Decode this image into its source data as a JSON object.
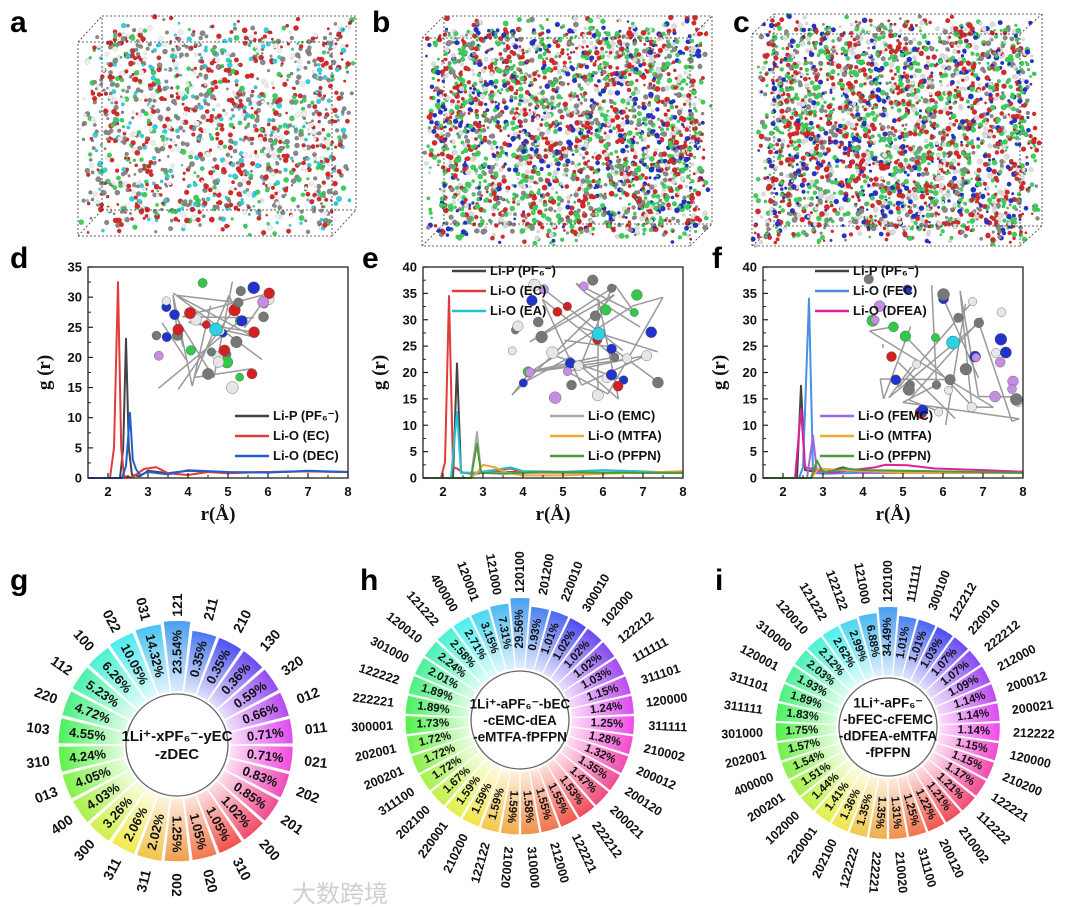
{
  "panel_letters": {
    "a": "a",
    "b": "b",
    "c": "c",
    "d": "d",
    "e": "e",
    "f": "f",
    "g": "g",
    "h": "h",
    "i": "i"
  },
  "watermark": "大数跨境",
  "chart_data": [
    {
      "id": "d",
      "type": "line",
      "xlabel": "r(Å)",
      "ylabel": "g (r)",
      "xlim": [
        1.5,
        8
      ],
      "ylim": [
        0,
        35
      ],
      "xticks": [
        2,
        3,
        4,
        5,
        6,
        7,
        8
      ],
      "yticks": [
        0,
        5,
        10,
        15,
        20,
        25,
        30,
        35
      ],
      "series": [
        {
          "name": "Li-P (PF₆⁻)",
          "color": "#444444",
          "points": [
            [
              1.5,
              0
            ],
            [
              2.3,
              0
            ],
            [
              2.38,
              5
            ],
            [
              2.45,
              23.1
            ],
            [
              2.52,
              5
            ],
            [
              2.6,
              0.5
            ],
            [
              2.8,
              0.3
            ],
            [
              3,
              1.2
            ],
            [
              3.5,
              0.8
            ],
            [
              4,
              1.2
            ],
            [
              5,
              0.9
            ],
            [
              6,
              1
            ],
            [
              7,
              1.1
            ],
            [
              8,
              1
            ]
          ]
        },
        {
          "name": "Li-O (EC)",
          "color": "#e23b3b",
          "points": [
            [
              1.5,
              0
            ],
            [
              2.05,
              0
            ],
            [
              2.15,
              5
            ],
            [
              2.25,
              32.5
            ],
            [
              2.33,
              5
            ],
            [
              2.4,
              0.3
            ],
            [
              2.6,
              0.1
            ],
            [
              2.9,
              1.5
            ],
            [
              3.2,
              1.8
            ],
            [
              3.5,
              0.8
            ],
            [
              4,
              0.5
            ],
            [
              4.5,
              1
            ],
            [
              5,
              0.8
            ],
            [
              6,
              1
            ],
            [
              7,
              1.1
            ],
            [
              8,
              1
            ]
          ]
        },
        {
          "name": "Li-O (DEC)",
          "color": "#1f5fd0",
          "points": [
            [
              1.5,
              0
            ],
            [
              2.35,
              0
            ],
            [
              2.45,
              2
            ],
            [
              2.55,
              10.8
            ],
            [
              2.62,
              3
            ],
            [
              2.7,
              1.5
            ],
            [
              2.8,
              0.5
            ],
            [
              3,
              1
            ],
            [
              3.5,
              0.6
            ],
            [
              4,
              1.3
            ],
            [
              5,
              1
            ],
            [
              6,
              0.9
            ],
            [
              7,
              1.2
            ],
            [
              8,
              1
            ]
          ]
        }
      ]
    },
    {
      "id": "e",
      "type": "line",
      "xlabel": "r(Å)",
      "ylabel": "g (r)",
      "xlim": [
        1.5,
        8
      ],
      "ylim": [
        0,
        40
      ],
      "xticks": [
        2,
        3,
        4,
        5,
        6,
        7,
        8
      ],
      "yticks": [
        0,
        5,
        10,
        15,
        20,
        25,
        30,
        35,
        40
      ],
      "series": [
        {
          "name": "Li-P (PF₆⁻)",
          "color": "#444444",
          "points": [
            [
              1.5,
              0
            ],
            [
              2.25,
              0
            ],
            [
              2.35,
              21.7
            ],
            [
              2.45,
              1
            ],
            [
              2.8,
              0.8
            ],
            [
              3,
              1
            ],
            [
              4,
              1.2
            ],
            [
              5,
              1
            ],
            [
              8,
              1
            ]
          ]
        },
        {
          "name": "Li-O (EC)",
          "color": "#e23b3b",
          "points": [
            [
              1.5,
              0
            ],
            [
              1.95,
              0
            ],
            [
              2.05,
              3
            ],
            [
              2.15,
              34.5
            ],
            [
              2.25,
              2
            ],
            [
              2.35,
              1.8
            ],
            [
              2.5,
              1
            ],
            [
              3,
              1
            ],
            [
              3.7,
              1.8
            ],
            [
              4,
              1
            ],
            [
              5,
              1
            ],
            [
              8,
              1
            ]
          ]
        },
        {
          "name": "Li-O (EA)",
          "color": "#22c4d0",
          "points": [
            [
              1.5,
              0
            ],
            [
              2.2,
              0
            ],
            [
              2.35,
              12.5
            ],
            [
              2.45,
              1
            ],
            [
              2.8,
              1
            ],
            [
              3.7,
              2
            ],
            [
              4,
              1.3
            ],
            [
              5,
              1.2
            ],
            [
              6,
              1.5
            ],
            [
              8,
              1
            ]
          ]
        },
        {
          "name": "Li-O (EMC)",
          "color": "#aaaaaa",
          "points": [
            [
              1.5,
              0
            ],
            [
              2.7,
              0
            ],
            [
              2.85,
              8.7
            ],
            [
              2.95,
              1
            ],
            [
              3.5,
              1
            ],
            [
              5,
              1
            ],
            [
              8,
              1
            ]
          ]
        },
        {
          "name": "Li-O (MTFA)",
          "color": "#f0a830",
          "points": [
            [
              1.5,
              0
            ],
            [
              2.7,
              0
            ],
            [
              2.85,
              1
            ],
            [
              3,
              2.5
            ],
            [
              3.3,
              2
            ],
            [
              3.6,
              1
            ],
            [
              4,
              0.5
            ],
            [
              5,
              0.5
            ],
            [
              6,
              0.8
            ],
            [
              7,
              1
            ],
            [
              8,
              1.3
            ]
          ]
        },
        {
          "name": "Li-O (PFPN)",
          "color": "#4a9a3a",
          "points": [
            [
              1.5,
              0
            ],
            [
              2.7,
              0
            ],
            [
              2.85,
              6.5
            ],
            [
              2.95,
              1
            ],
            [
              3.5,
              0.8
            ],
            [
              4.5,
              1.2
            ],
            [
              6,
              1
            ],
            [
              8,
              1
            ]
          ]
        }
      ]
    },
    {
      "id": "f",
      "type": "line",
      "xlabel": "r(Å)",
      "ylabel": "g (r)",
      "xlim": [
        1.5,
        8
      ],
      "ylim": [
        0,
        40
      ],
      "xticks": [
        2,
        3,
        4,
        5,
        6,
        7,
        8
      ],
      "yticks": [
        0,
        5,
        10,
        15,
        20,
        25,
        30,
        35,
        40
      ],
      "series": [
        {
          "name": "Li-P (PF₆⁻)",
          "color": "#444444",
          "points": [
            [
              1.5,
              0
            ],
            [
              2.35,
              0
            ],
            [
              2.45,
              17.5
            ],
            [
              2.55,
              1.5
            ],
            [
              3,
              1
            ],
            [
              3.5,
              2
            ],
            [
              4,
              1
            ],
            [
              8,
              1
            ]
          ]
        },
        {
          "name": "Li-O (FEC)",
          "color": "#4a90e2",
          "points": [
            [
              1.5,
              0
            ],
            [
              2.4,
              0
            ],
            [
              2.5,
              2
            ],
            [
              2.65,
              34
            ],
            [
              2.75,
              1
            ],
            [
              3,
              0.8
            ],
            [
              4,
              1
            ],
            [
              8,
              1
            ]
          ]
        },
        {
          "name": "Li-O (DFEA)",
          "color": "#e0209a",
          "points": [
            [
              1.5,
              0
            ],
            [
              2.3,
              0
            ],
            [
              2.45,
              13
            ],
            [
              2.55,
              2
            ],
            [
              2.9,
              1.5
            ],
            [
              3.2,
              1
            ],
            [
              4.3,
              2
            ],
            [
              4.55,
              2.5
            ],
            [
              5.1,
              2.4
            ],
            [
              5.8,
              1.8
            ],
            [
              7,
              1.5
            ],
            [
              8,
              1.2
            ]
          ]
        },
        {
          "name": "Li-O (FEMC)",
          "color": "#9a6ae0",
          "points": [
            [
              1.5,
              0
            ],
            [
              2.6,
              0
            ],
            [
              2.75,
              8
            ],
            [
              2.85,
              1
            ],
            [
              3.5,
              1.5
            ],
            [
              4,
              1
            ],
            [
              8,
              1
            ]
          ]
        },
        {
          "name": "Li-O (MTFA)",
          "color": "#f0a830",
          "points": [
            [
              1.5,
              0
            ],
            [
              2.7,
              0
            ],
            [
              2.9,
              1.8
            ],
            [
              3.5,
              1.5
            ],
            [
              5,
              1
            ],
            [
              8,
              1
            ]
          ]
        },
        {
          "name": "Li-O (PFPN)",
          "color": "#4a9a3a",
          "points": [
            [
              1.5,
              0
            ],
            [
              2.7,
              0
            ],
            [
              2.85,
              3.3
            ],
            [
              3,
              1
            ],
            [
              3.5,
              1.8
            ],
            [
              4,
              1.5
            ],
            [
              8,
              1
            ]
          ]
        }
      ]
    },
    {
      "id": "g",
      "type": "bar",
      "subtype": "radial",
      "center_label": [
        "1Li⁺-xPF₆⁻-yEC",
        "-zDEC"
      ],
      "categories": [
        "121",
        "211",
        "210",
        "130",
        "320",
        "012",
        "011",
        "021",
        "202",
        "201",
        "200",
        "310",
        "020",
        "002",
        "311",
        "311",
        "300",
        "400",
        "013",
        "310",
        "103",
        "220",
        "112",
        "100",
        "022",
        "031"
      ],
      "values": [
        23.54,
        0.35,
        0.35,
        0.36,
        0.59,
        0.66,
        0.71,
        0.71,
        0.83,
        0.85,
        1.02,
        1.05,
        1.05,
        1.25,
        2.02,
        2.06,
        3.26,
        4.03,
        4.05,
        4.24,
        4.55,
        4.72,
        5.23,
        6.26,
        10.05,
        14.32
      ],
      "unit": "%"
    },
    {
      "id": "h",
      "type": "bar",
      "subtype": "radial",
      "center_label": [
        "1Li⁺-aPF₆⁻-bEC",
        "-cEMC-dEA",
        "-eMTFA-fPFPN"
      ],
      "categories": [
        "120100",
        "201200",
        "220010",
        "300010",
        "102000",
        "122212",
        "111111",
        "311101",
        "120000",
        "311111",
        "210002",
        "200012",
        "200120",
        "200021",
        "222212",
        "122221",
        "212000",
        "310000",
        "210020",
        "122122",
        "210200",
        "220001",
        "202100",
        "311100",
        "200201",
        "202001",
        "300001",
        "222221",
        "122222",
        "301000",
        "120010",
        "121222",
        "400000",
        "120001",
        "121000"
      ],
      "values": [
        29.56,
        0.93,
        1.01,
        1.02,
        1.02,
        1.02,
        1.03,
        1.15,
        1.24,
        1.25,
        1.28,
        1.32,
        1.35,
        1.47,
        1.53,
        1.55,
        1.55,
        1.58,
        1.59,
        1.59,
        1.59,
        1.59,
        1.67,
        1.72,
        1.72,
        1.72,
        1.73,
        1.89,
        1.89,
        2.01,
        2.24,
        2.58,
        2.71,
        3.15,
        7.31
      ],
      "unit": "%"
    },
    {
      "id": "i",
      "type": "bar",
      "subtype": "radial",
      "center_label": [
        "1Li⁺-aPF₆⁻",
        "-bFEC-cFEMC",
        "-dDFEA-eMTFA",
        "-fPFPN"
      ],
      "categories": [
        "120100",
        "111111",
        "300100",
        "122212",
        "220010",
        "222212",
        "212000",
        "200012",
        "200021",
        "212222",
        "120000",
        "210200",
        "122221",
        "112222",
        "210002",
        "200120",
        "311100",
        "210020",
        "222221",
        "122222",
        "202100",
        "220001",
        "102000",
        "200201",
        "400000",
        "202001",
        "301000",
        "311111",
        "311101",
        "120001",
        "310000",
        "120010",
        "121222",
        "122122",
        "121000"
      ],
      "values": [
        34.49,
        1.01,
        1.01,
        1.03,
        1.07,
        1.07,
        1.09,
        1.14,
        1.14,
        1.14,
        1.15,
        1.15,
        1.17,
        1.21,
        1.21,
        1.22,
        1.25,
        1.31,
        1.35,
        1.35,
        1.36,
        1.41,
        1.44,
        1.51,
        1.54,
        1.57,
        1.75,
        1.83,
        1.89,
        1.93,
        2.03,
        2.12,
        2.62,
        2.99,
        6.88
      ],
      "unit": "%"
    }
  ]
}
